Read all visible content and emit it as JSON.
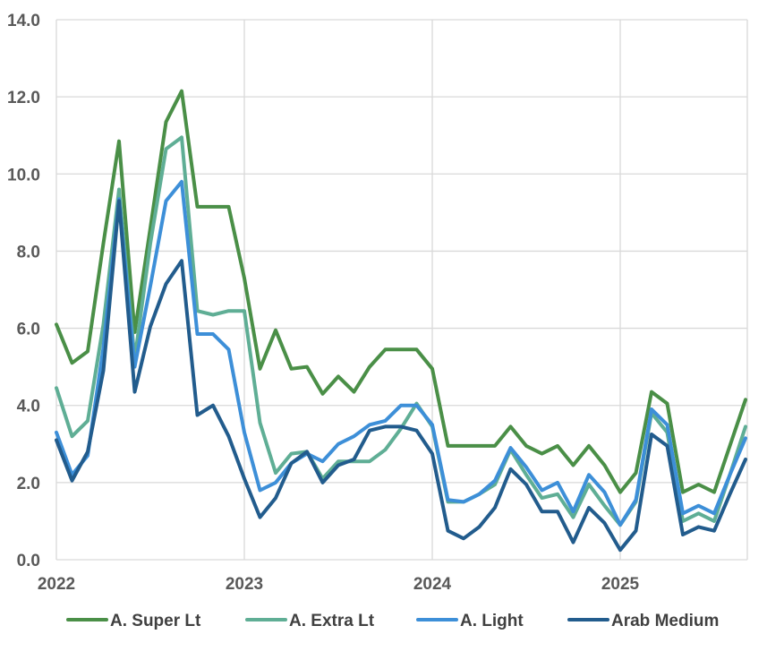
{
  "chart_data": {
    "type": "line",
    "title": "",
    "xlabel": "",
    "ylabel": "",
    "ylim": [
      0,
      14
    ],
    "yticks": [
      "0.0",
      "2.0",
      "4.0",
      "6.0",
      "8.0",
      "10.0",
      "12.0",
      "14.0"
    ],
    "xticks": [
      "2022",
      "2023",
      "2024",
      "2025"
    ],
    "grid": true,
    "legend_position": "bottom",
    "series": [
      {
        "name": "A. Super Lt",
        "color": "#4a8f47",
        "values": [
          6.1,
          5.1,
          5.4,
          8.2,
          10.85,
          5.9,
          8.6,
          11.35,
          12.15,
          9.15,
          9.15,
          9.15,
          7.3,
          4.95,
          5.95,
          4.95,
          5.0,
          4.3,
          4.75,
          4.35,
          5.0,
          5.45,
          5.45,
          5.45,
          4.95,
          2.95,
          2.95,
          2.95,
          2.95,
          3.45,
          2.95,
          2.75,
          2.95,
          2.45,
          2.95,
          2.45,
          1.75,
          2.25,
          4.35,
          4.05,
          1.75,
          1.95,
          1.75,
          2.95,
          4.15
        ]
      },
      {
        "name": "A. Extra Lt",
        "color": "#5fae95",
        "values": [
          4.45,
          3.2,
          3.6,
          6.1,
          9.6,
          5.2,
          8.2,
          10.65,
          10.95,
          6.45,
          6.35,
          6.45,
          6.45,
          3.55,
          2.25,
          2.75,
          2.8,
          2.1,
          2.55,
          2.55,
          2.55,
          2.85,
          3.4,
          4.05,
          3.45,
          1.5,
          1.5,
          1.7,
          1.95,
          2.85,
          2.2,
          1.6,
          1.7,
          1.1,
          1.95,
          1.4,
          0.9,
          1.5,
          3.8,
          3.3,
          1.0,
          1.2,
          1.0,
          2.2,
          3.45
        ]
      },
      {
        "name": "A. Light",
        "color": "#3d8fd8",
        "values": [
          3.3,
          2.2,
          2.7,
          5.5,
          9.35,
          5.0,
          7.1,
          9.3,
          9.8,
          5.85,
          5.85,
          5.45,
          3.3,
          1.8,
          2.0,
          2.5,
          2.75,
          2.55,
          3.0,
          3.2,
          3.5,
          3.6,
          4.0,
          4.0,
          3.5,
          1.55,
          1.5,
          1.7,
          2.05,
          2.9,
          2.4,
          1.8,
          2.0,
          1.25,
          2.2,
          1.75,
          0.9,
          1.55,
          3.9,
          3.5,
          1.2,
          1.4,
          1.2,
          2.2,
          3.15
        ]
      },
      {
        "name": "Arab Medium",
        "color": "#225c8d",
        "values": [
          3.1,
          2.05,
          2.8,
          4.9,
          9.3,
          4.35,
          6.05,
          7.15,
          7.75,
          3.75,
          4.0,
          3.2,
          2.1,
          1.1,
          1.6,
          2.5,
          2.8,
          2.0,
          2.45,
          2.6,
          3.35,
          3.45,
          3.45,
          3.35,
          2.75,
          0.75,
          0.55,
          0.85,
          1.35,
          2.35,
          1.95,
          1.25,
          1.25,
          0.45,
          1.35,
          0.95,
          0.25,
          0.75,
          3.25,
          2.95,
          0.65,
          0.85,
          0.75,
          1.7,
          2.6
        ]
      }
    ]
  }
}
